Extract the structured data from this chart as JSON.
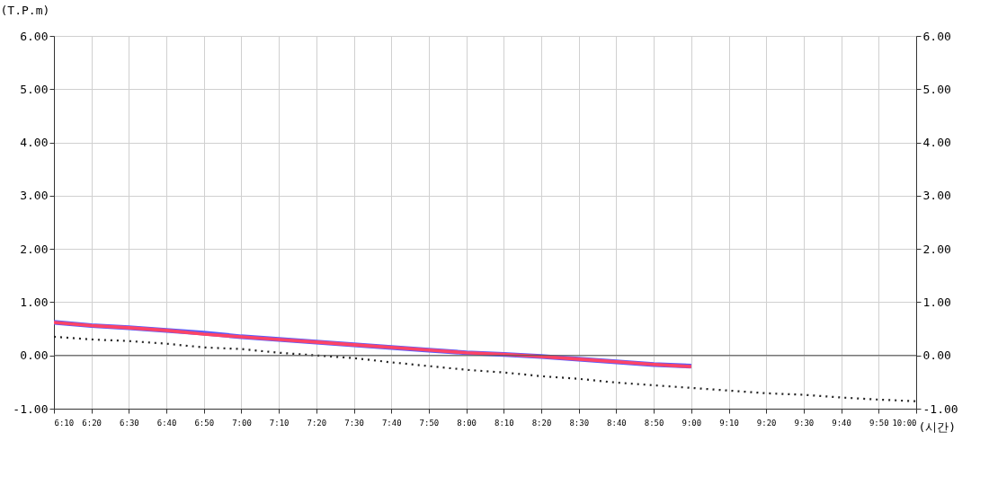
{
  "chart_data": {
    "type": "line",
    "ylabel": "(T.P.m)",
    "xlabel": "(시간)",
    "x": [
      6.1667,
      6.3333,
      6.5,
      6.6667,
      6.8333,
      7.0,
      7.1667,
      7.3333,
      7.5,
      7.6667,
      7.8333,
      8.0,
      8.1667,
      8.3333,
      8.5,
      8.6667,
      8.8333,
      9.0,
      9.1667,
      9.3333,
      9.5,
      9.6667,
      9.8333,
      10.0
    ],
    "series": [
      {
        "color": "#5a5aff",
        "line_style": "solid",
        "values": [
          0.62,
          0.56,
          0.52,
          0.47,
          0.42,
          0.35,
          0.3,
          0.25,
          0.2,
          0.15,
          0.1,
          0.05,
          0.02,
          -0.02,
          -0.07,
          -0.12,
          -0.17,
          -0.2,
          null,
          null,
          null,
          null,
          null,
          null
        ]
      },
      {
        "color": "#ff4466",
        "line_style": "solid",
        "values": [
          0.62,
          0.56,
          0.52,
          0.47,
          0.4,
          0.35,
          0.3,
          0.25,
          0.2,
          0.15,
          0.1,
          0.05,
          0.02,
          -0.02,
          -0.07,
          -0.12,
          -0.17,
          -0.21,
          null,
          null,
          null,
          null,
          null,
          null
        ]
      },
      {
        "color": "#222222",
        "line_style": "dotted",
        "values": [
          0.35,
          0.3,
          0.27,
          0.22,
          0.15,
          0.12,
          0.05,
          0.0,
          -0.05,
          -0.13,
          -0.2,
          -0.27,
          -0.32,
          -0.39,
          -0.44,
          -0.51,
          -0.56,
          -0.61,
          -0.66,
          -0.71,
          -0.74,
          -0.79,
          -0.83,
          -0.86
        ]
      }
    ],
    "xlim": [
      6.1667,
      10.0
    ],
    "xticks": [
      {
        "value": 6.1667,
        "label": "6:10"
      },
      {
        "value": 6.3333,
        "label": "6:20"
      },
      {
        "value": 6.5,
        "label": "6:30"
      },
      {
        "value": 6.6667,
        "label": "6:40"
      },
      {
        "value": 6.8333,
        "label": "6:50"
      },
      {
        "value": 7.0,
        "label": "7:00"
      },
      {
        "value": 7.1667,
        "label": "7:10"
      },
      {
        "value": 7.3333,
        "label": "7:20"
      },
      {
        "value": 7.5,
        "label": "7:30"
      },
      {
        "value": 7.6667,
        "label": "7:40"
      },
      {
        "value": 7.8333,
        "label": "7:50"
      },
      {
        "value": 8.0,
        "label": "8:00"
      },
      {
        "value": 8.1667,
        "label": "8:10"
      },
      {
        "value": 8.3333,
        "label": "8:20"
      },
      {
        "value": 8.5,
        "label": "8:30"
      },
      {
        "value": 8.6667,
        "label": "8:40"
      },
      {
        "value": 8.8333,
        "label": "8:50"
      },
      {
        "value": 9.0,
        "label": "9:00"
      },
      {
        "value": 9.1667,
        "label": "9:10"
      },
      {
        "value": 9.3333,
        "label": "9:20"
      },
      {
        "value": 9.5,
        "label": "9:30"
      },
      {
        "value": 9.6667,
        "label": "9:40"
      },
      {
        "value": 9.8333,
        "label": "9:50"
      },
      {
        "value": 10.0,
        "label": "10:00"
      }
    ],
    "ylim": [
      -1,
      6
    ],
    "yticks": [
      {
        "value": -1,
        "label": "-1.00"
      },
      {
        "value": 0,
        "label": "0.00"
      },
      {
        "value": 1,
        "label": "1.00"
      },
      {
        "value": 2,
        "label": "2.00"
      },
      {
        "value": 3,
        "label": "3.00"
      },
      {
        "value": 4,
        "label": "4.00"
      },
      {
        "value": 5,
        "label": "5.00"
      },
      {
        "value": 6,
        "label": "6.00"
      }
    ],
    "y2lim": [
      -1,
      6
    ],
    "y2ticks": [
      {
        "value": -1,
        "label": "-1.00"
      },
      {
        "value": 0,
        "label": "0.00"
      },
      {
        "value": 1,
        "label": "1.00"
      },
      {
        "value": 2,
        "label": "2.00"
      },
      {
        "value": 3,
        "label": "3.00"
      },
      {
        "value": 4,
        "label": "4.00"
      },
      {
        "value": 5,
        "label": "5.00"
      },
      {
        "value": 6,
        "label": "6.00"
      }
    ],
    "ref_lines": [
      {
        "axis": "y",
        "value": 0,
        "color": "#555555",
        "line_style": "solid"
      }
    ],
    "grid": true,
    "marker": "none"
  }
}
